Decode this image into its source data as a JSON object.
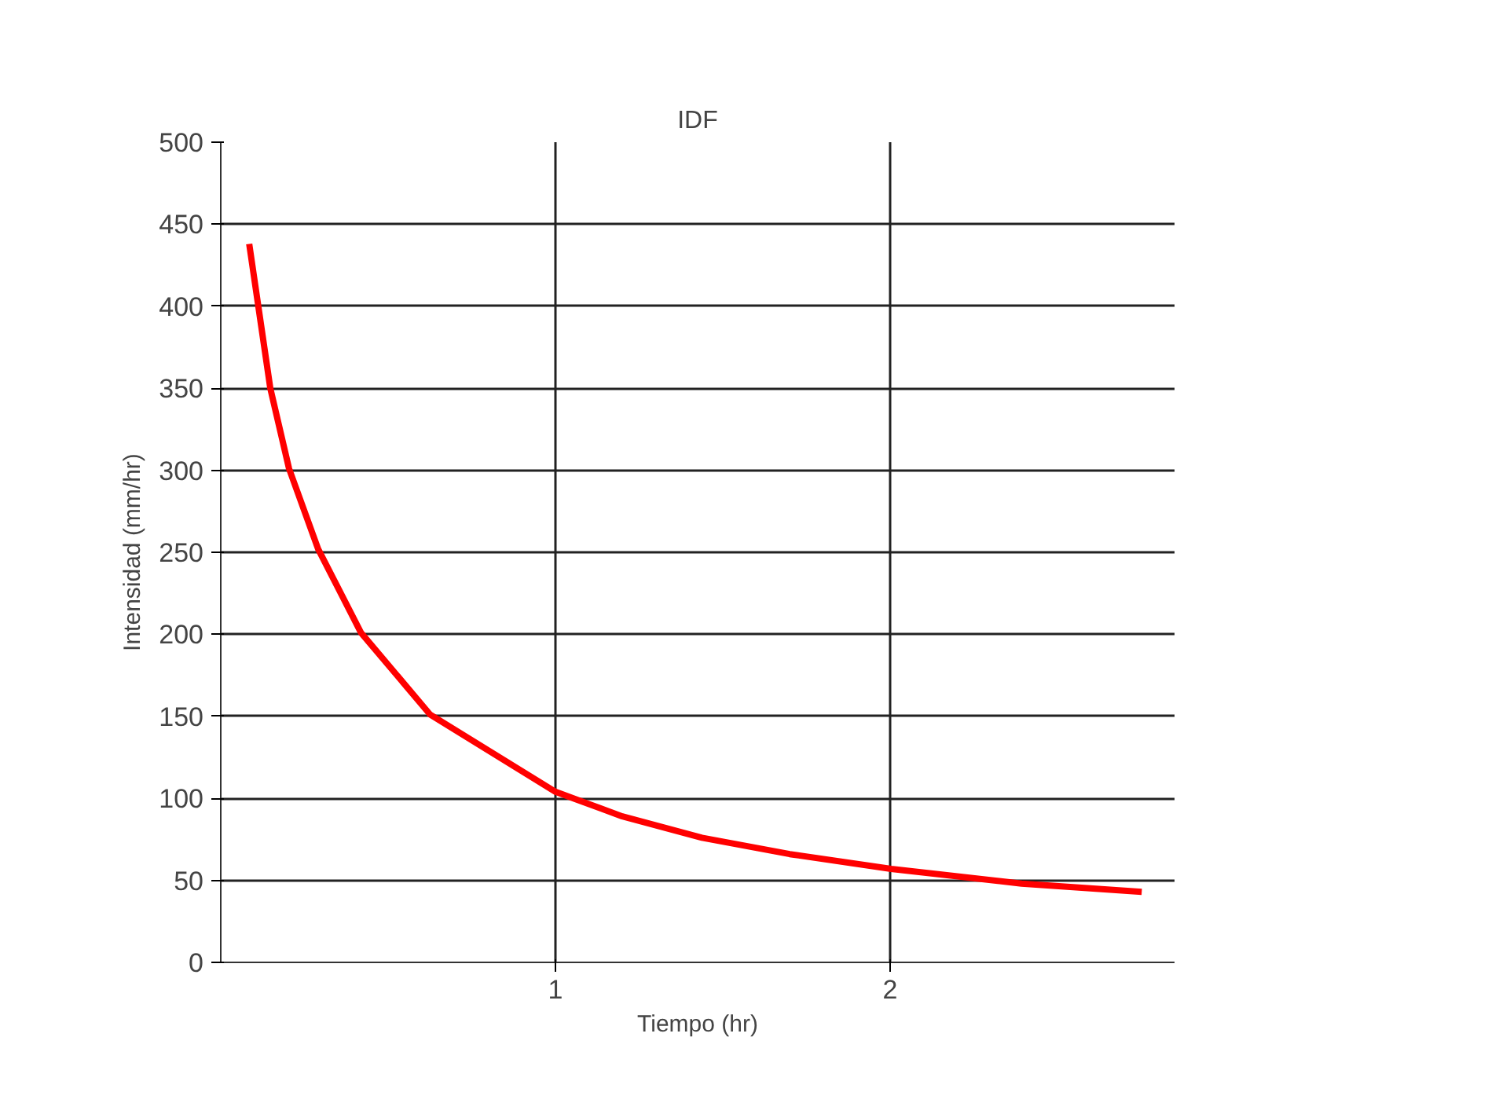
{
  "chart_data": {
    "type": "line",
    "title": "IDF",
    "xlabel": "Tiempo (hr)",
    "ylabel": "Intensidad (mm/hr)",
    "x": [
      0.085,
      0.148,
      0.204,
      0.291,
      0.419,
      0.626,
      1.0,
      1.2,
      1.438,
      1.7,
      2.003,
      2.393,
      2.752
    ],
    "series": [
      {
        "color": "#ff0000",
        "values": [
          438,
          350,
          301,
          252,
          201,
          151,
          104,
          89,
          76,
          66,
          57,
          48,
          43
        ]
      }
    ],
    "xlim": [
      0,
      2.85
    ],
    "xticks": [
      1,
      2
    ],
    "ylim": [
      0,
      500
    ],
    "yticks": [
      0,
      50,
      100,
      150,
      200,
      250,
      300,
      350,
      400,
      450,
      500
    ],
    "grid": true,
    "marker": "none",
    "line_style": "solid"
  }
}
